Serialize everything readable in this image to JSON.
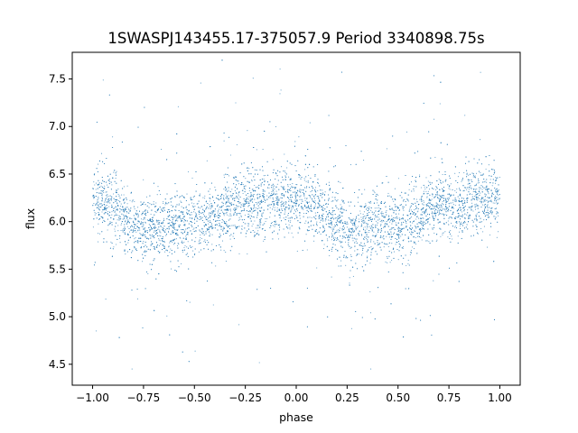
{
  "chart_data": {
    "type": "scatter",
    "title": "1SWASPJ143455.17-375057.9 Period 3340898.75s",
    "xlabel": "phase",
    "ylabel": "flux",
    "xlim": [
      -1.1,
      1.1
    ],
    "ylim": [
      4.28,
      7.78
    ],
    "xticks": [
      -1.0,
      -0.75,
      -0.5,
      -0.25,
      0.0,
      0.25,
      0.5,
      0.75,
      1.0
    ],
    "xtick_labels": [
      "−1.00",
      "−0.75",
      "−0.50",
      "−0.25",
      "0.00",
      "0.25",
      "0.50",
      "0.75",
      "1.00"
    ],
    "yticks": [
      4.5,
      5.0,
      5.5,
      6.0,
      6.5,
      7.0,
      7.5
    ],
    "ytick_labels": [
      "4.5",
      "5.0",
      "5.5",
      "6.0",
      "6.5",
      "7.0",
      "7.5"
    ],
    "grid": false,
    "marker_color": "#1f77b4",
    "series": [
      {
        "x_range": [
          -1.0,
          1.0
        ],
        "typical_flux": 6.0,
        "flux_range": [
          4.45,
          7.7
        ],
        "profile": [
          {
            "phase": -1.0,
            "flux": 6.25
          },
          {
            "phase": -0.75,
            "flux": 5.92
          },
          {
            "phase": -0.5,
            "flux": 5.98
          },
          {
            "phase": -0.25,
            "flux": 6.18
          },
          {
            "phase": 0.0,
            "flux": 6.25
          },
          {
            "phase": 0.25,
            "flux": 5.92
          },
          {
            "phase": 0.5,
            "flux": 5.98
          },
          {
            "phase": 0.75,
            "flux": 6.18
          },
          {
            "phase": 1.0,
            "flux": 6.25
          }
        ]
      }
    ]
  }
}
